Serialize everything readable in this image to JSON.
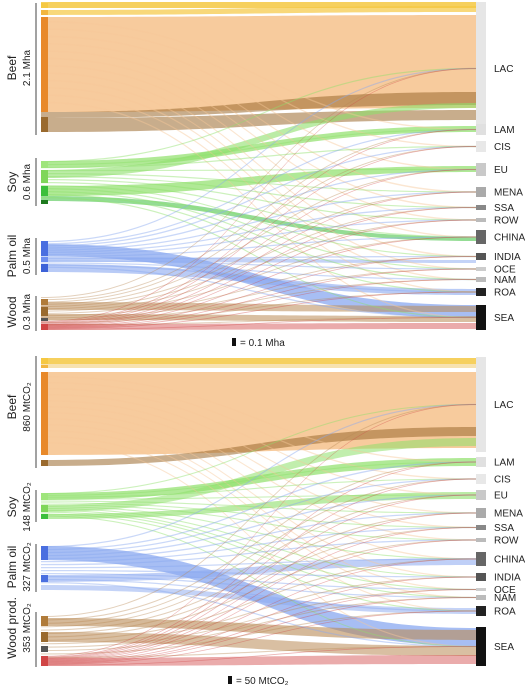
{
  "diagram": {
    "type": "sankey",
    "panels": [
      {
        "scale_note": "= 0.1 Mha",
        "commodities": [
          {
            "name": "Beef",
            "amount": "2.1 Mha"
          },
          {
            "name": "Soy",
            "amount": "0.6 Mha"
          },
          {
            "name": "Palm oil",
            "amount": "0.5 Mha"
          },
          {
            "name": "Wood",
            "amount": "0.3 Mha"
          }
        ]
      },
      {
        "scale_note": "= 50 MtCO₂",
        "commodities": [
          {
            "name": "Beef",
            "amount": "860 MtCO₂"
          },
          {
            "name": "Soy",
            "amount": "148 MtCO₂"
          },
          {
            "name": "Palm oil",
            "amount": "327 MtCO₂"
          },
          {
            "name": "Wood prod.",
            "amount": "353 MtCO₂"
          }
        ]
      }
    ],
    "regions": [
      "LAC",
      "LAM",
      "CIS",
      "EU",
      "MENA",
      "SSA",
      "ROW",
      "CHINA",
      "INDIA",
      "OCE",
      "NAM",
      "ROA",
      "SEA"
    ],
    "colors": {
      "beef_light": "#f7c898",
      "beef_bar": "#e8892a",
      "beef_dark": "#9a6a2e",
      "yellow": "#f5c842",
      "soy": "#8ee06a",
      "soy_bar": "#3cbf3c",
      "palm": "#8aa8f0",
      "palm_bar": "#4a6fe0",
      "wood": "#b98a55",
      "wood_red": "#d04545"
    }
  }
}
